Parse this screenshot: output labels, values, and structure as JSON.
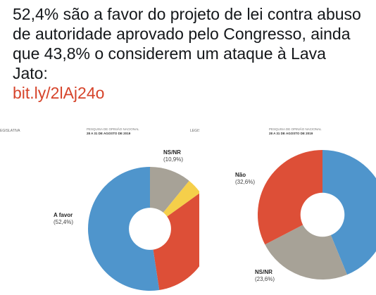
{
  "tweet": {
    "text": "52,4% são a favor do projeto de lei contra abuso de autoridade aprovado pelo Congresso, ainda que 43,8% o considerem um ataque à Lava Jato:",
    "link": "bit.ly/2lAj24o"
  },
  "images": [
    {
      "left_header": "EGISLATIVA",
      "survey": "PESQUISA DE OPINIÃO NACIONAL",
      "dates": "28 A 31 DE AGOSTO DE 2019",
      "right_header": "LEGISLATIVA",
      "chart_data": {
        "type": "pie",
        "slices": [
          {
            "name": "NS/NR",
            "value_label": "(10,9%)",
            "value": 10.9,
            "color": "#a7a297"
          },
          {
            "value": 4.2,
            "color": "#f5cf4a"
          },
          {
            "value": 32.5,
            "color": "#dd4f37"
          },
          {
            "name": "A favor",
            "value_label": "(52,4%)",
            "value": 52.4,
            "color": "#4f95cc"
          }
        ]
      }
    },
    {
      "survey": "PESQUISA DE OPINIÃO NACIONAL",
      "dates": "28 A 31 DE AGOSTO DE 2019",
      "chart_data": {
        "type": "pie",
        "slices": [
          {
            "value": 43.8,
            "color": "#4f95cc"
          },
          {
            "name": "NS/NR",
            "value_label": "(23,6%)",
            "value": 23.6,
            "color": "#a7a297"
          },
          {
            "name": "Não",
            "value_label": "(32,6%)",
            "value": 32.6,
            "color": "#dd4f37"
          }
        ]
      }
    }
  ]
}
